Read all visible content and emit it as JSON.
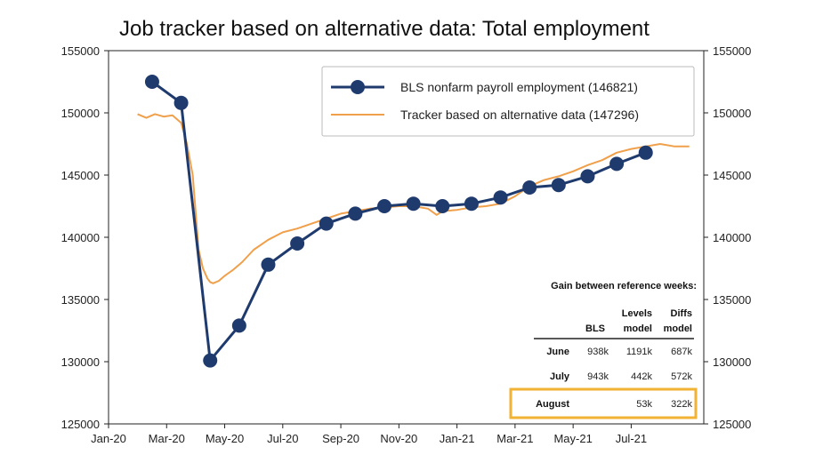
{
  "chart_data": {
    "type": "line",
    "title": "Job tracker based on alternative data: Total employment",
    "xlabel": "",
    "ylabel": "",
    "ylim": [
      125000,
      155000
    ],
    "yticks": [
      125000,
      130000,
      135000,
      140000,
      145000,
      150000,
      155000
    ],
    "xlim": [
      0,
      20.5
    ],
    "xtick_labels": [
      "Jan-20",
      "Mar-20",
      "May-20",
      "Jul-20",
      "Sep-20",
      "Nov-20",
      "Jan-21",
      "Mar-21",
      "May-21",
      "Jul-21"
    ],
    "xtick_months": [
      0,
      2,
      4,
      6,
      8,
      10,
      12,
      14,
      16,
      18
    ],
    "legend_position": "top-right",
    "series": [
      {
        "name": "BLS nonfarm payroll employment (146821)",
        "color": "#1f3b6e",
        "style": "line-markers",
        "x": [
          1.5,
          2.5,
          3.5,
          4.5,
          5.5,
          6.5,
          7.5,
          8.5,
          9.5,
          10.5,
          11.5,
          12.5,
          13.5,
          14.5,
          15.5,
          16.5,
          17.5,
          18.5
        ],
        "values": [
          152500,
          150800,
          130100,
          132900,
          137800,
          139500,
          141100,
          141900,
          142500,
          142700,
          142500,
          142700,
          143200,
          144000,
          144200,
          144900,
          145900,
          146800
        ]
      },
      {
        "name": "Tracker based on alternative data (147296)",
        "color": "#f0a04b",
        "style": "line",
        "x": [
          1.0,
          1.3,
          1.6,
          1.9,
          2.2,
          2.5,
          2.7,
          2.9,
          3.0,
          3.1,
          3.25,
          3.4,
          3.5,
          3.6,
          3.8,
          4.0,
          4.3,
          4.6,
          5.0,
          5.5,
          6.0,
          6.5,
          7.0,
          7.5,
          8.0,
          8.5,
          9.0,
          9.5,
          10.0,
          10.5,
          11.0,
          11.3,
          11.5,
          12.0,
          12.5,
          13.0,
          13.5,
          14.0,
          14.5,
          15.0,
          15.5,
          16.0,
          16.5,
          17.0,
          17.5,
          18.0,
          18.5,
          19.0,
          19.5,
          20.0
        ],
        "values": [
          149900,
          149600,
          149900,
          149700,
          149800,
          149200,
          147500,
          145000,
          142000,
          139000,
          137500,
          136700,
          136400,
          136300,
          136500,
          136900,
          137400,
          138000,
          139000,
          139800,
          140400,
          140700,
          141100,
          141500,
          141900,
          142100,
          142300,
          142400,
          142500,
          142500,
          142300,
          141800,
          142100,
          142200,
          142400,
          142500,
          142700,
          143300,
          144100,
          144600,
          144900,
          145300,
          145800,
          146200,
          146800,
          147100,
          147300,
          147500,
          147300,
          147300
        ]
      }
    ],
    "table": {
      "title": "Gain between reference weeks:",
      "columns": [
        "BLS",
        "Levels model",
        "Diffs model"
      ],
      "rows": [
        {
          "label": "June",
          "values": [
            "938k",
            "1191k",
            "687k"
          ]
        },
        {
          "label": "July",
          "values": [
            "943k",
            "442k",
            "572k"
          ]
        },
        {
          "label": "August",
          "values": [
            "",
            "53k",
            "322k"
          ]
        }
      ],
      "highlight_row": "August",
      "highlight_color": "#f2b233"
    }
  }
}
